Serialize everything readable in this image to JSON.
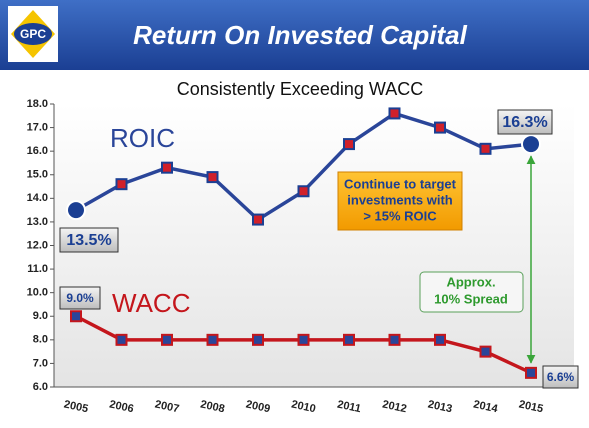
{
  "logo": "GPC",
  "header": {
    "title": "Return On Invested Capital"
  },
  "chart_data": {
    "type": "line",
    "title": "Consistently Exceeding WACC",
    "categories": [
      "2005",
      "2006",
      "2007",
      "2008",
      "2009",
      "2010",
      "2011",
      "2012",
      "2013",
      "2014",
      "2015"
    ],
    "series": [
      {
        "name": "ROIC",
        "color": "#2a4599",
        "marker_color": "#d0202a",
        "values": [
          13.5,
          14.6,
          15.3,
          14.9,
          13.1,
          14.3,
          16.3,
          17.6,
          17.0,
          16.1,
          16.3
        ],
        "value_labels": [
          "13.5%",
          null,
          null,
          null,
          null,
          null,
          null,
          null,
          null,
          null,
          "16.3%"
        ]
      },
      {
        "name": "WACC",
        "color": "#c4161c",
        "marker_color": "#2a4599",
        "values": [
          9.0,
          8.0,
          8.0,
          8.0,
          8.0,
          8.0,
          8.0,
          8.0,
          8.0,
          7.5,
          6.6
        ],
        "value_labels": [
          "9.0%",
          null,
          null,
          null,
          null,
          null,
          null,
          null,
          null,
          null,
          "6.6%"
        ]
      }
    ],
    "ylim": [
      6,
      18
    ],
    "yticks": [
      {
        "value": 6,
        "label": "6.0"
      },
      {
        "value": 7,
        "label": "7.0"
      },
      {
        "value": 8,
        "label": "8.0"
      },
      {
        "value": 9,
        "label": "9.0"
      },
      {
        "value": 10,
        "label": "10.0"
      },
      {
        "value": 11,
        "label": "11.0"
      },
      {
        "value": 12,
        "label": "12.0"
      },
      {
        "value": 13,
        "label": "13.0"
      },
      {
        "value": 14,
        "label": "14.0"
      },
      {
        "value": 15,
        "label": "15.0"
      },
      {
        "value": 16,
        "label": "16.0"
      },
      {
        "value": 17,
        "label": "17.0"
      },
      {
        "value": 18,
        "label": "18.0"
      }
    ],
    "annotations": {
      "target": [
        "Continue to target",
        "investments with",
        "> 15% ROIC"
      ],
      "spread": [
        "Approx.",
        "10% Spread"
      ]
    }
  }
}
